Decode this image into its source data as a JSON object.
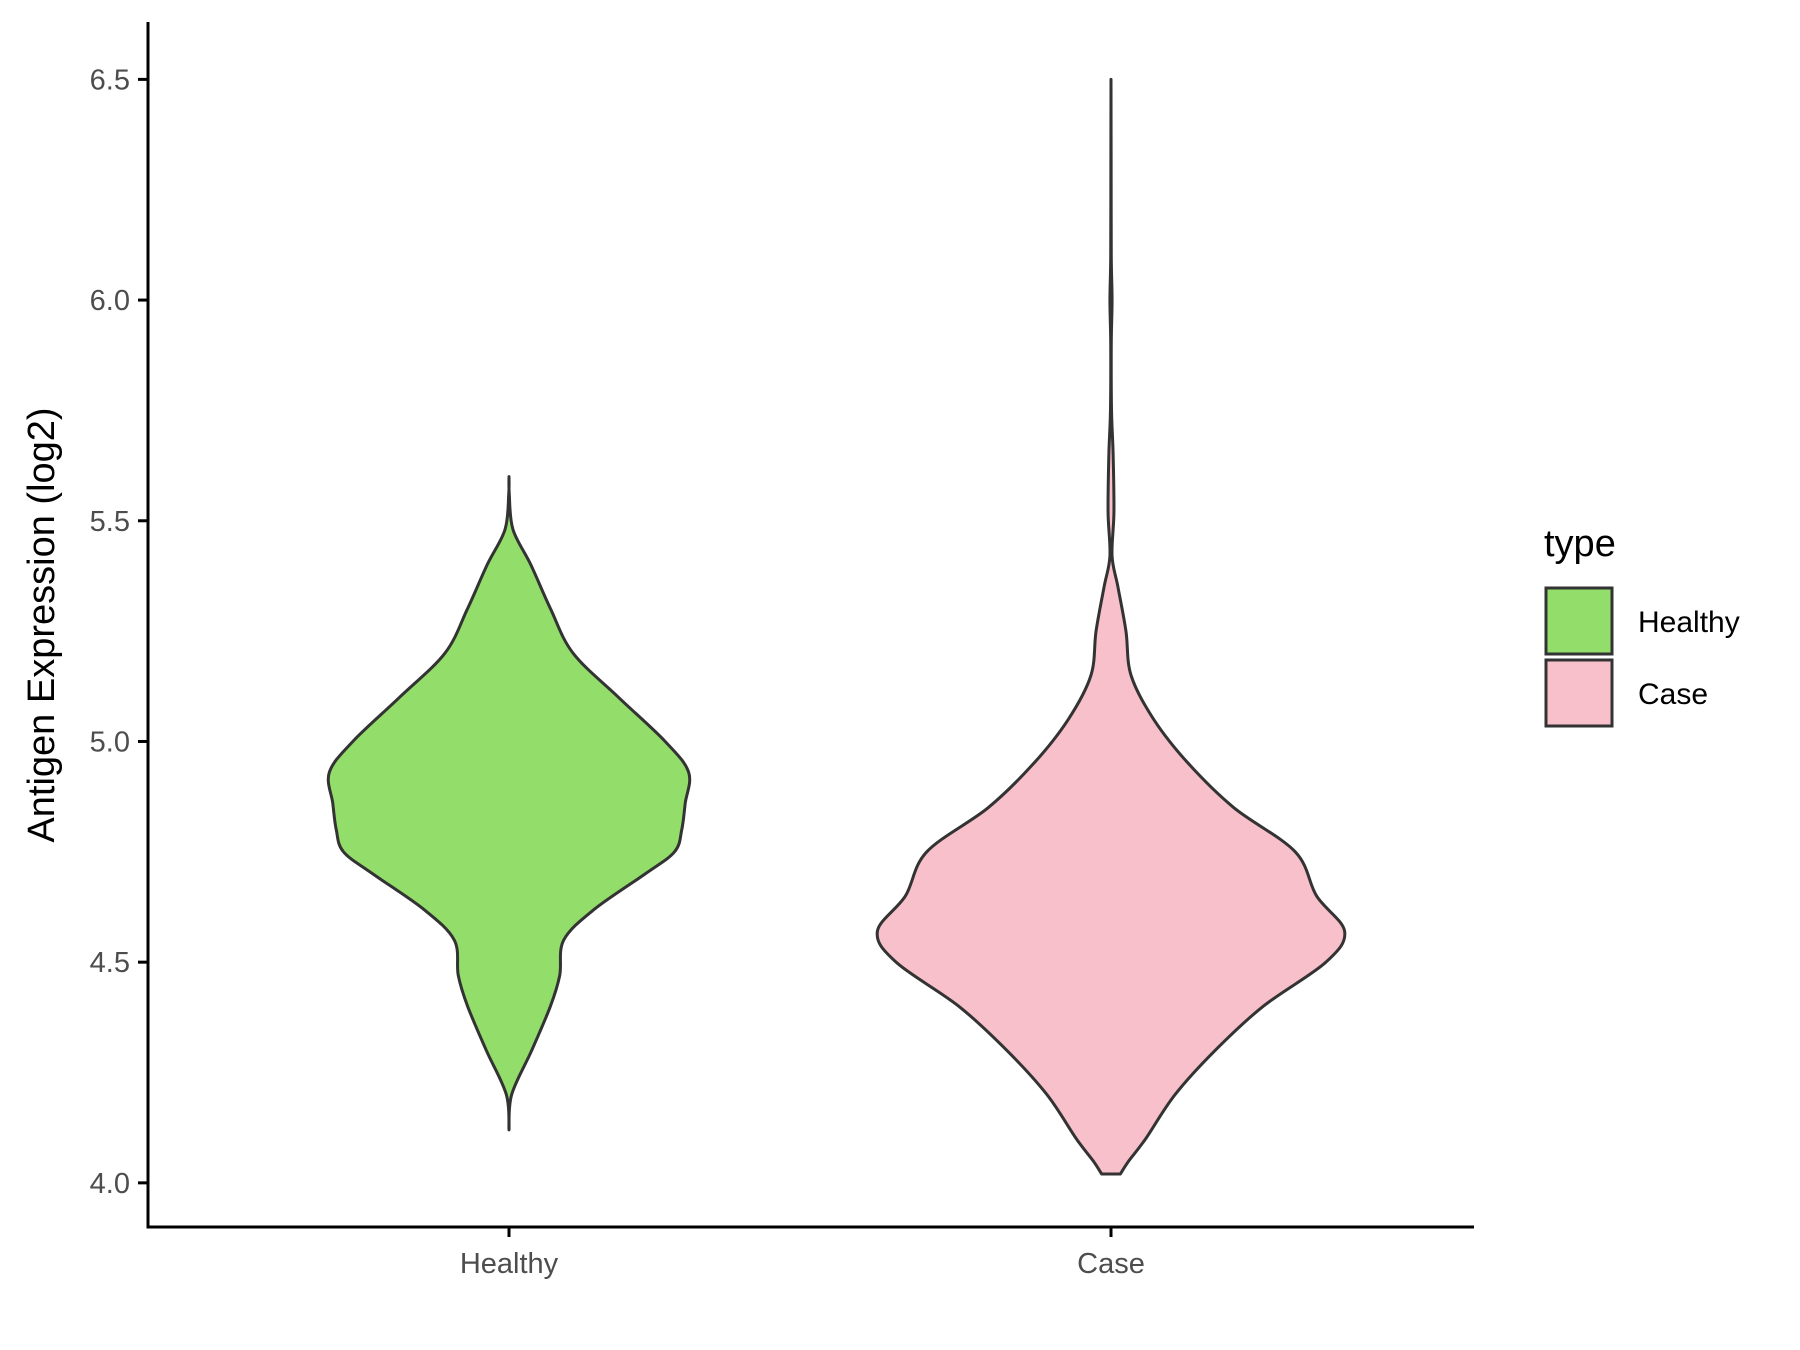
{
  "chart_data": {
    "type": "violin",
    "ylabel": "Antigen Expression (log2)",
    "xlabel": "",
    "categories": [
      "Healthy",
      "Case"
    ],
    "ylim": [
      3.9,
      6.63
    ],
    "yticks": [
      "4.0",
      "4.5",
      "5.0",
      "5.5",
      "6.0",
      "6.5"
    ],
    "legend": {
      "title": "type",
      "position": "right",
      "entries": [
        {
          "label": "Healthy",
          "color": "#93DD6A"
        },
        {
          "label": "Case",
          "color": "#F8C0CB"
        }
      ]
    },
    "grid": false,
    "series": [
      {
        "category": "Healthy",
        "color": "#93DD6A",
        "density": [
          [
            4.12,
            0.0
          ],
          [
            4.2,
            0.01
          ],
          [
            4.3,
            0.085
          ],
          [
            4.4,
            0.155
          ],
          [
            4.47,
            0.19
          ],
          [
            4.55,
            0.205
          ],
          [
            4.62,
            0.32
          ],
          [
            4.7,
            0.51
          ],
          [
            4.75,
            0.62
          ],
          [
            4.8,
            0.647
          ],
          [
            4.86,
            0.66
          ],
          [
            4.93,
            0.673
          ],
          [
            5.0,
            0.585
          ],
          [
            5.1,
            0.41
          ],
          [
            5.2,
            0.24
          ],
          [
            5.3,
            0.156
          ],
          [
            5.4,
            0.082
          ],
          [
            5.48,
            0.015
          ],
          [
            5.56,
            0.001
          ],
          [
            5.6,
            0.0
          ]
        ]
      },
      {
        "category": "Case",
        "color": "#F8C0CB",
        "density": [
          [
            4.02,
            0.035
          ],
          [
            4.05,
            0.067
          ],
          [
            4.1,
            0.13
          ],
          [
            4.2,
            0.24
          ],
          [
            4.3,
            0.39
          ],
          [
            4.4,
            0.57
          ],
          [
            4.5,
            0.805
          ],
          [
            4.57,
            0.875
          ],
          [
            4.65,
            0.77
          ],
          [
            4.75,
            0.69
          ],
          [
            4.85,
            0.46
          ],
          [
            4.95,
            0.29
          ],
          [
            5.05,
            0.16
          ],
          [
            5.15,
            0.075
          ],
          [
            5.25,
            0.056
          ],
          [
            5.35,
            0.026
          ],
          [
            5.42,
            0.004
          ],
          [
            5.52,
            0.011
          ],
          [
            5.65,
            0.008
          ],
          [
            5.75,
            0.002
          ],
          [
            5.9,
            0.001
          ],
          [
            6.0,
            0.004
          ],
          [
            6.1,
            0.001
          ],
          [
            6.3,
            0.0005
          ],
          [
            6.5,
            0.0
          ]
        ]
      }
    ]
  }
}
